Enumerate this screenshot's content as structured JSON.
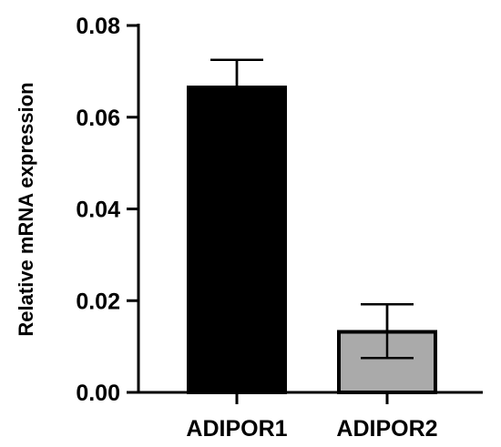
{
  "chart_data": {
    "type": "bar",
    "categories": [
      "ADIPOR1",
      "ADIPOR2"
    ],
    "values": [
      0.0665,
      0.0132
    ],
    "error_upper": [
      0.0725,
      0.0192
    ],
    "error_lower": [
      0.0665,
      0.0075
    ],
    "bar_colors": [
      "#000000",
      "#aaaaaa"
    ],
    "xlabel": "",
    "ylabel": "Relative mRNA expression",
    "ylim": [
      0,
      0.08
    ],
    "yticks": [
      "0.00",
      "0.02",
      "0.04",
      "0.06",
      "0.08"
    ],
    "ytick_values": [
      0,
      0.02,
      0.04,
      0.06,
      0.08
    ],
    "grid": false,
    "legend": "none"
  }
}
